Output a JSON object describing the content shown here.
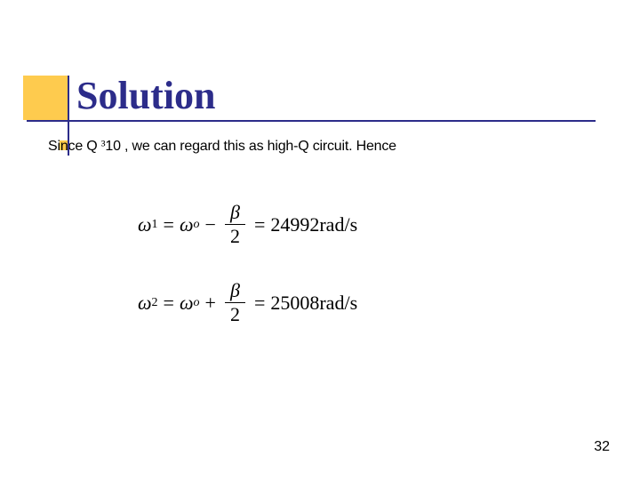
{
  "title": "Solution",
  "body_text_pre": "Since Q ",
  "body_text_num": "10 ",
  "body_text_post": ", we can regard this as high-Q circuit. Hence",
  "eq1": {
    "lhs_sym": "ω",
    "lhs_sub": "1",
    "rhs1_sym": "ω",
    "rhs1_sub": "o",
    "sign": "−",
    "frac_num": "β",
    "frac_den": "2",
    "result": "24992rad/s"
  },
  "eq2": {
    "lhs_sym": "ω",
    "lhs_sub": "2",
    "rhs1_sym": "ω",
    "rhs1_sub": "o",
    "sign": "+",
    "frac_num": "β",
    "frac_den": "2",
    "result": "25008rad/s"
  },
  "page_number": "32",
  "colors": {
    "accent": "#fecb4e",
    "title": "#2c2c8a",
    "text": "#000000",
    "background": "#ffffff"
  }
}
